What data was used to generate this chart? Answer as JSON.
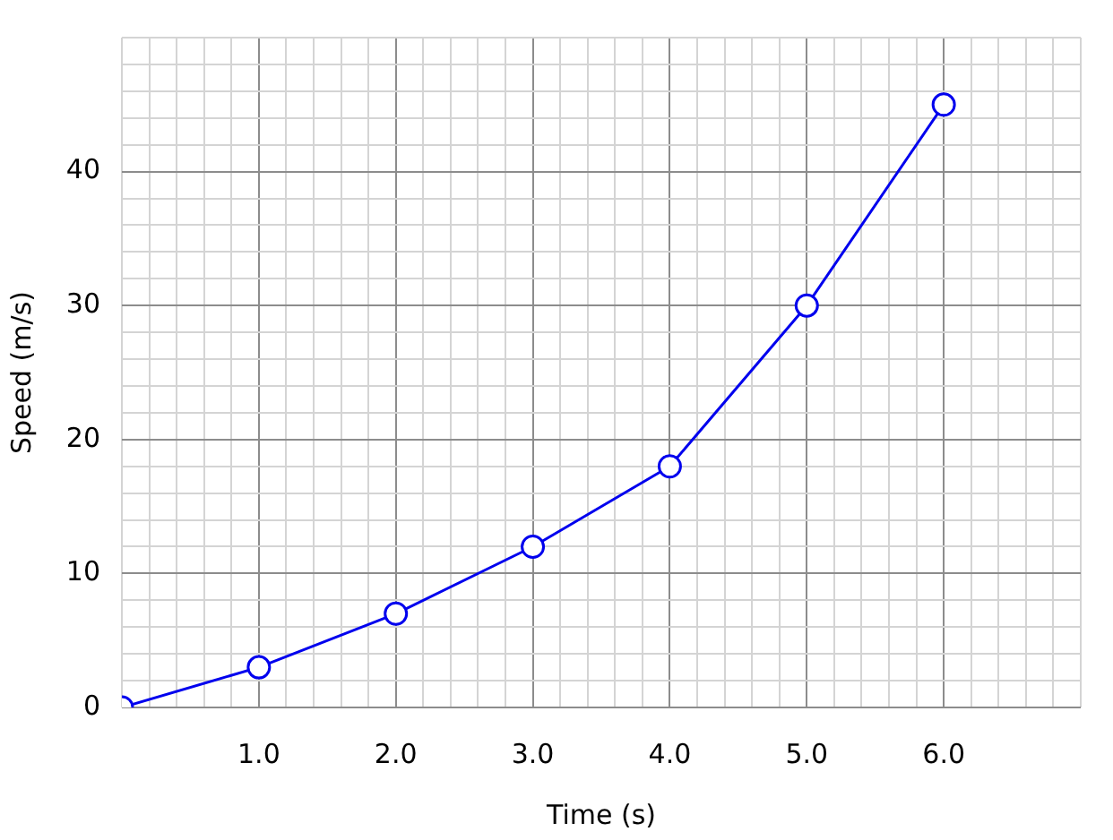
{
  "chart_data": {
    "type": "line",
    "xlabel": "Time (s)",
    "ylabel": "Speed (m/s)",
    "x": [
      0,
      1,
      2,
      3,
      4,
      5,
      6
    ],
    "series": [
      {
        "color": "#0000ee",
        "values": [
          0,
          3,
          7,
          12,
          18,
          30,
          45
        ]
      }
    ],
    "xlim": [
      0,
      7
    ],
    "ylim": [
      0,
      50
    ],
    "xticks": [
      {
        "value": 0,
        "label": null
      },
      {
        "value": 0.2,
        "label": null
      },
      {
        "value": 0.4,
        "label": null
      },
      {
        "value": 0.6,
        "label": null
      },
      {
        "value": 0.8,
        "label": null
      },
      {
        "value": 1,
        "label": "1.0"
      },
      {
        "value": 1.2,
        "label": null
      },
      {
        "value": 1.4,
        "label": null
      },
      {
        "value": 1.6,
        "label": null
      },
      {
        "value": 1.8,
        "label": null
      },
      {
        "value": 2,
        "label": "2.0"
      },
      {
        "value": 2.2,
        "label": null
      },
      {
        "value": 2.4,
        "label": null
      },
      {
        "value": 2.6,
        "label": null
      },
      {
        "value": 2.8,
        "label": null
      },
      {
        "value": 3,
        "label": "3.0"
      },
      {
        "value": 3.2,
        "label": null
      },
      {
        "value": 3.4,
        "label": null
      },
      {
        "value": 3.6,
        "label": null
      },
      {
        "value": 3.8,
        "label": null
      },
      {
        "value": 4,
        "label": "4.0"
      },
      {
        "value": 4.2,
        "label": null
      },
      {
        "value": 4.4,
        "label": null
      },
      {
        "value": 4.6,
        "label": null
      },
      {
        "value": 4.8,
        "label": null
      },
      {
        "value": 5,
        "label": "5.0"
      },
      {
        "value": 5.2,
        "label": null
      },
      {
        "value": 5.4,
        "label": null
      },
      {
        "value": 5.6,
        "label": null
      },
      {
        "value": 5.8,
        "label": null
      },
      {
        "value": 6,
        "label": "6.0"
      },
      {
        "value": 6.2,
        "label": null
      },
      {
        "value": 6.4,
        "label": null
      },
      {
        "value": 6.6,
        "label": null
      },
      {
        "value": 6.8,
        "label": null
      },
      {
        "value": 7,
        "label": null
      }
    ],
    "yticks": [
      0,
      {
        "value": 2,
        "label": null
      },
      {
        "value": 4,
        "label": null
      },
      {
        "value": 6,
        "label": null
      },
      {
        "value": 8,
        "label": null
      },
      10,
      {
        "value": 12,
        "label": null
      },
      {
        "value": 14,
        "label": null
      },
      {
        "value": 16,
        "label": null
      },
      {
        "value": 18,
        "label": null
      },
      20,
      {
        "value": 22,
        "label": null
      },
      {
        "value": 24,
        "label": null
      },
      {
        "value": 26,
        "label": null
      },
      {
        "value": 28,
        "label": null
      },
      30,
      {
        "value": 32,
        "label": null
      },
      {
        "value": 34,
        "label": null
      },
      {
        "value": 36,
        "label": null
      },
      {
        "value": 38,
        "label": null
      },
      40,
      {
        "value": 42,
        "label": null
      },
      {
        "value": 44,
        "label": null
      },
      {
        "value": 46,
        "label": null
      },
      {
        "value": 48,
        "label": null
      },
      {
        "value": 50,
        "label": null
      }
    ],
    "grid": true,
    "legend": false,
    "marker": "circle",
    "line_style": "solid"
  }
}
